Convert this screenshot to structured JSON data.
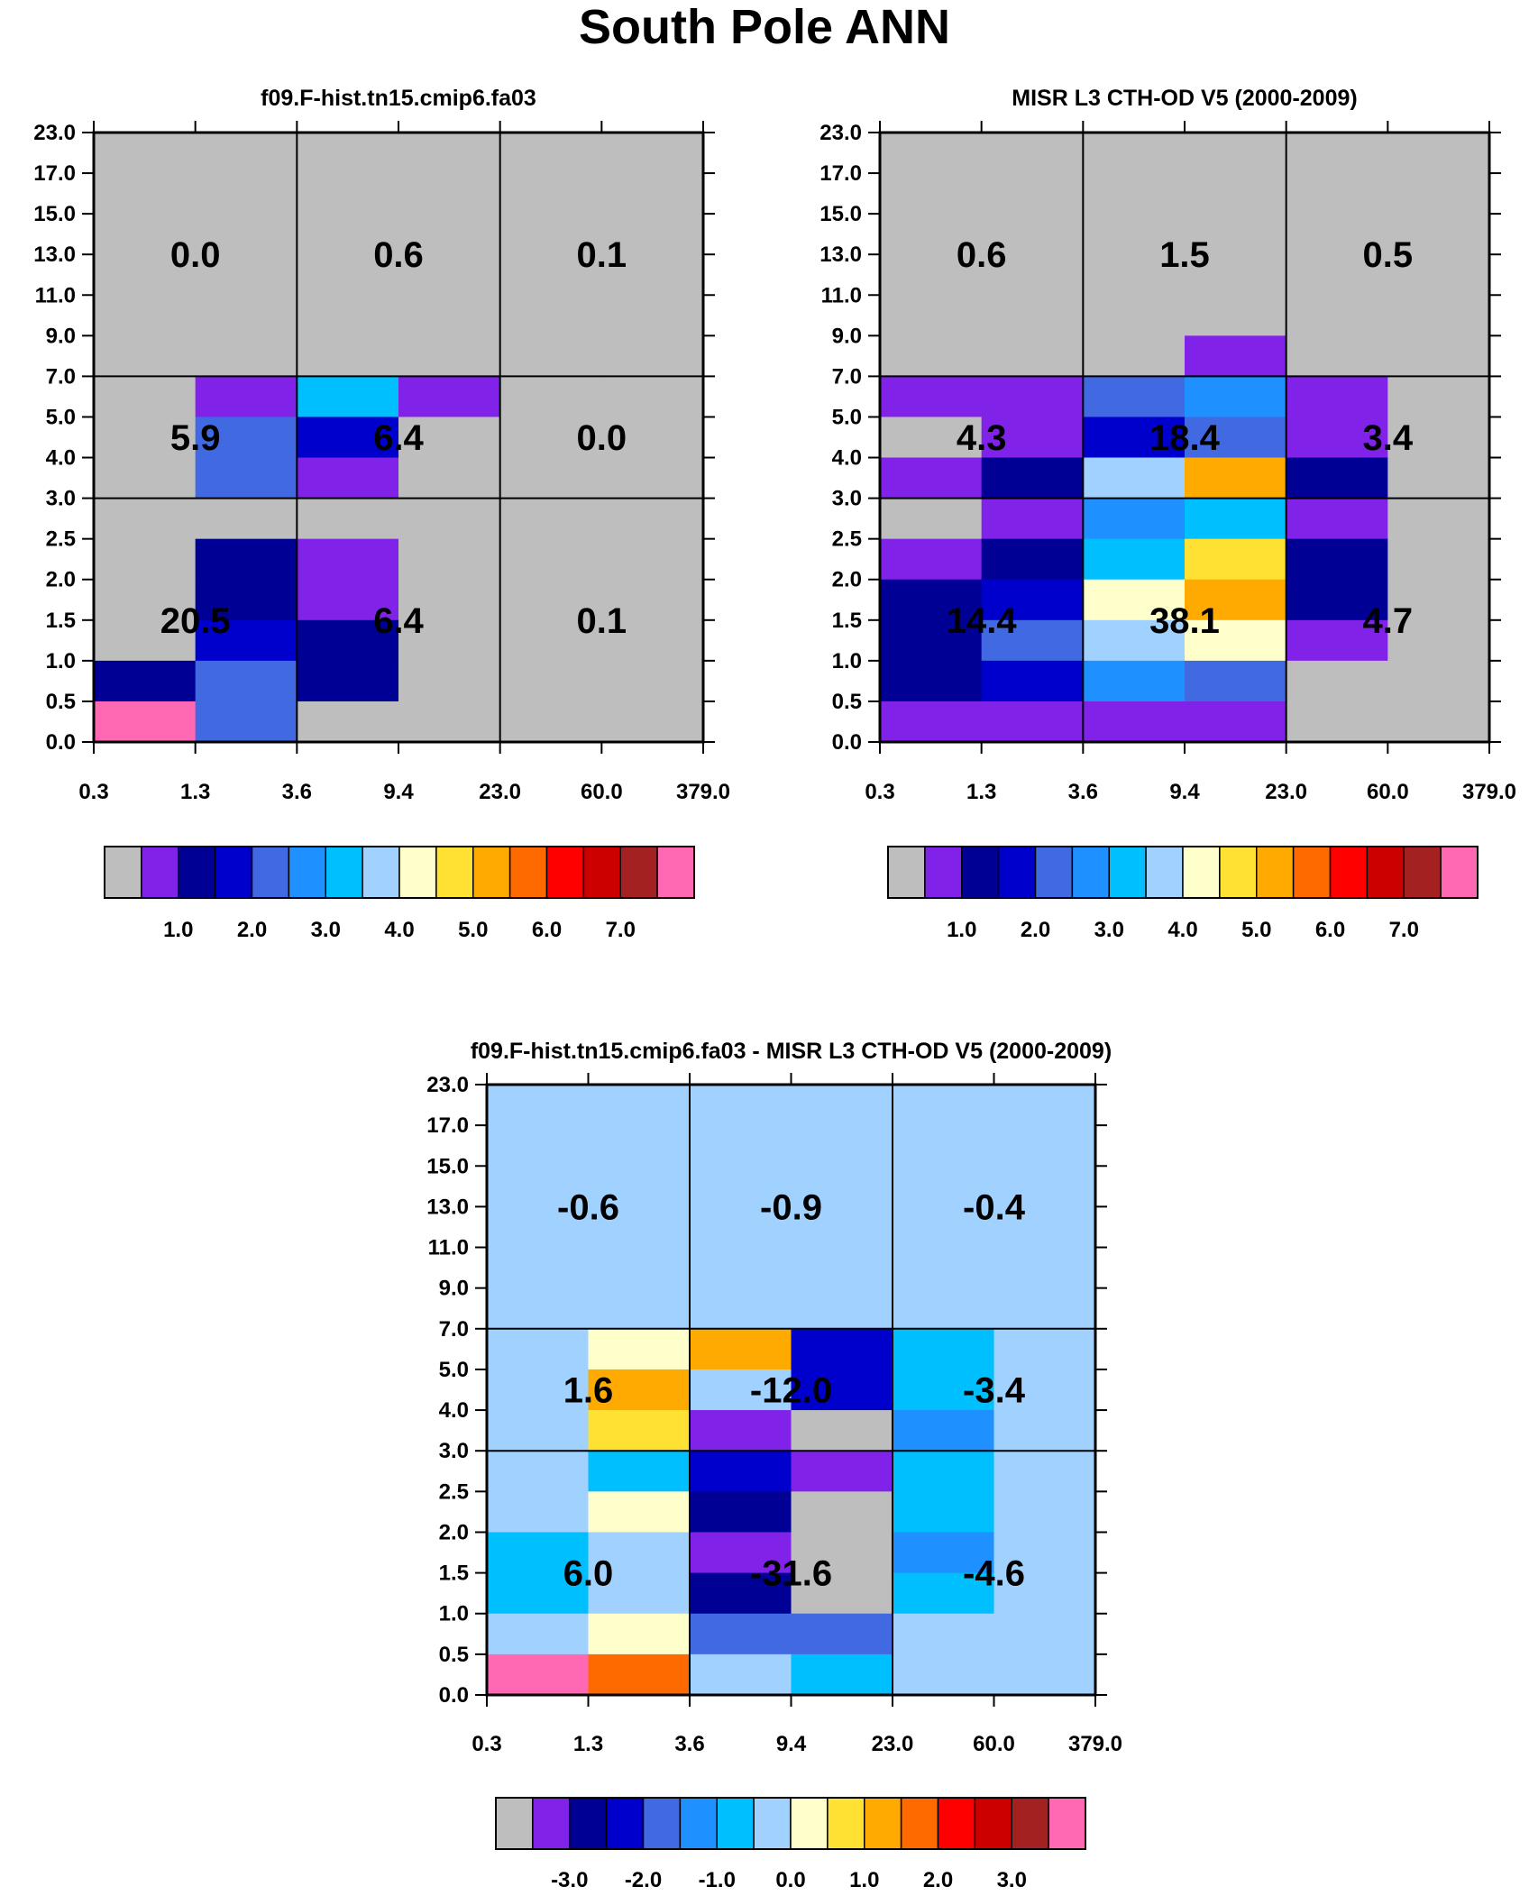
{
  "figure_title": "South Pole ANN",
  "palette": [
    "#bebebe",
    "#8122e8",
    "#000094",
    "#0000cd",
    "#4169e1",
    "#1e90ff",
    "#00bfff",
    "#a1d2ff",
    "#ffffcc",
    "#ffe134",
    "#ffaa00",
    "#ff6a00",
    "#ff0000",
    "#cd0000",
    "#a32121",
    "#ff69b4"
  ],
  "chart_data": [
    {
      "type": "heatmap",
      "title": "f09.F-hist.tn15.cmip6.fa03",
      "x_ticks": [
        "0.3",
        "1.3",
        "3.6",
        "9.4",
        "23.0",
        "60.0",
        "379.0"
      ],
      "y_ticks": [
        "0.0",
        "0.5",
        "1.0",
        "1.5",
        "2.0",
        "2.5",
        "3.0",
        "4.0",
        "5.0",
        "7.0",
        "9.0",
        "11.0",
        "13.0",
        "15.0",
        "17.0",
        "23.0"
      ],
      "cells_rows_top_to_bottom_palette_index": [
        [
          0,
          0,
          0,
          0,
          0,
          0
        ],
        [
          0,
          0,
          0,
          0,
          0,
          0
        ],
        [
          0,
          0,
          0,
          0,
          0,
          0
        ],
        [
          0,
          0,
          0,
          0,
          0,
          0
        ],
        [
          0,
          0,
          0,
          0,
          0,
          0
        ],
        [
          0,
          0,
          0,
          0,
          0,
          0
        ],
        [
          0,
          1,
          6,
          1,
          0,
          0
        ],
        [
          0,
          4,
          3,
          0,
          0,
          0
        ],
        [
          0,
          4,
          1,
          0,
          0,
          0
        ],
        [
          0,
          0,
          0,
          0,
          0,
          0
        ],
        [
          0,
          2,
          1,
          0,
          0,
          0
        ],
        [
          0,
          2,
          1,
          0,
          0,
          0
        ],
        [
          0,
          3,
          2,
          0,
          0,
          0
        ],
        [
          2,
          4,
          2,
          0,
          0,
          0
        ],
        [
          15,
          4,
          0,
          0,
          0,
          0
        ]
      ],
      "box_totals_top_to_bottom": [
        [
          "0.0",
          "0.6",
          "0.1"
        ],
        [
          "5.9",
          "6.4",
          "0.0"
        ],
        [
          "20.5",
          "6.4",
          "0.1"
        ]
      ],
      "colorbar": {
        "labels": [
          "1.0",
          "2.0",
          "3.0",
          "4.0",
          "5.0",
          "6.0",
          "7.0"
        ]
      }
    },
    {
      "type": "heatmap",
      "title": "MISR L3 CTH-OD V5 (2000-2009)",
      "x_ticks": [
        "0.3",
        "1.3",
        "3.6",
        "9.4",
        "23.0",
        "60.0",
        "379.0"
      ],
      "y_ticks": [
        "0.0",
        "0.5",
        "1.0",
        "1.5",
        "2.0",
        "2.5",
        "3.0",
        "4.0",
        "5.0",
        "7.0",
        "9.0",
        "11.0",
        "13.0",
        "15.0",
        "17.0",
        "23.0"
      ],
      "cells_rows_top_to_bottom_palette_index": [
        [
          0,
          0,
          0,
          0,
          0,
          0
        ],
        [
          0,
          0,
          0,
          0,
          0,
          0
        ],
        [
          0,
          0,
          0,
          0,
          0,
          0
        ],
        [
          0,
          0,
          0,
          0,
          0,
          0
        ],
        [
          0,
          0,
          0,
          0,
          0,
          0
        ],
        [
          0,
          0,
          0,
          1,
          0,
          0
        ],
        [
          1,
          1,
          4,
          5,
          1,
          0
        ],
        [
          0,
          1,
          3,
          4,
          1,
          0
        ],
        [
          1,
          2,
          7,
          10,
          2,
          0
        ],
        [
          0,
          1,
          5,
          6,
          1,
          0
        ],
        [
          1,
          2,
          6,
          9,
          2,
          0
        ],
        [
          2,
          3,
          8,
          10,
          2,
          0
        ],
        [
          2,
          4,
          7,
          8,
          1,
          0
        ],
        [
          2,
          3,
          5,
          4,
          0,
          0
        ],
        [
          1,
          1,
          1,
          1,
          0,
          0
        ]
      ],
      "box_totals_top_to_bottom": [
        [
          "0.6",
          "1.5",
          "0.5"
        ],
        [
          "4.3",
          "18.4",
          "3.4"
        ],
        [
          "14.4",
          "38.1",
          "4.7"
        ]
      ],
      "colorbar": {
        "labels": [
          "1.0",
          "2.0",
          "3.0",
          "4.0",
          "5.0",
          "6.0",
          "7.0"
        ]
      }
    },
    {
      "type": "heatmap",
      "title": "f09.F-hist.tn15.cmip6.fa03 - MISR L3 CTH-OD V5 (2000-2009)",
      "x_ticks": [
        "0.3",
        "1.3",
        "3.6",
        "9.4",
        "23.0",
        "60.0",
        "379.0"
      ],
      "y_ticks": [
        "0.0",
        "0.5",
        "1.0",
        "1.5",
        "2.0",
        "2.5",
        "3.0",
        "4.0",
        "5.0",
        "7.0",
        "9.0",
        "11.0",
        "13.0",
        "15.0",
        "17.0",
        "23.0"
      ],
      "cells_rows_top_to_bottom_palette_index": [
        [
          7,
          7,
          7,
          7,
          7,
          7
        ],
        [
          7,
          7,
          7,
          7,
          7,
          7
        ],
        [
          7,
          7,
          7,
          7,
          7,
          7
        ],
        [
          7,
          7,
          7,
          7,
          7,
          7
        ],
        [
          7,
          7,
          7,
          7,
          7,
          7
        ],
        [
          7,
          7,
          7,
          7,
          7,
          7
        ],
        [
          7,
          8,
          10,
          3,
          6,
          7
        ],
        [
          7,
          10,
          7,
          3,
          6,
          7
        ],
        [
          7,
          9,
          1,
          0,
          5,
          7
        ],
        [
          7,
          6,
          3,
          1,
          6,
          7
        ],
        [
          7,
          8,
          2,
          0,
          6,
          7
        ],
        [
          6,
          7,
          1,
          0,
          5,
          7
        ],
        [
          6,
          7,
          2,
          0,
          6,
          7
        ],
        [
          7,
          8,
          4,
          4,
          7,
          7
        ],
        [
          15,
          11,
          7,
          6,
          7,
          7
        ]
      ],
      "box_totals_top_to_bottom": [
        [
          "-0.6",
          "-0.9",
          "-0.4"
        ],
        [
          "1.6",
          "-12.0",
          "-3.4"
        ],
        [
          "6.0",
          "-31.6",
          "-4.6"
        ]
      ],
      "colorbar": {
        "labels": [
          "-3.0",
          "-2.0",
          "-1.0",
          "0.0",
          "1.0",
          "2.0",
          "3.0"
        ]
      }
    }
  ]
}
